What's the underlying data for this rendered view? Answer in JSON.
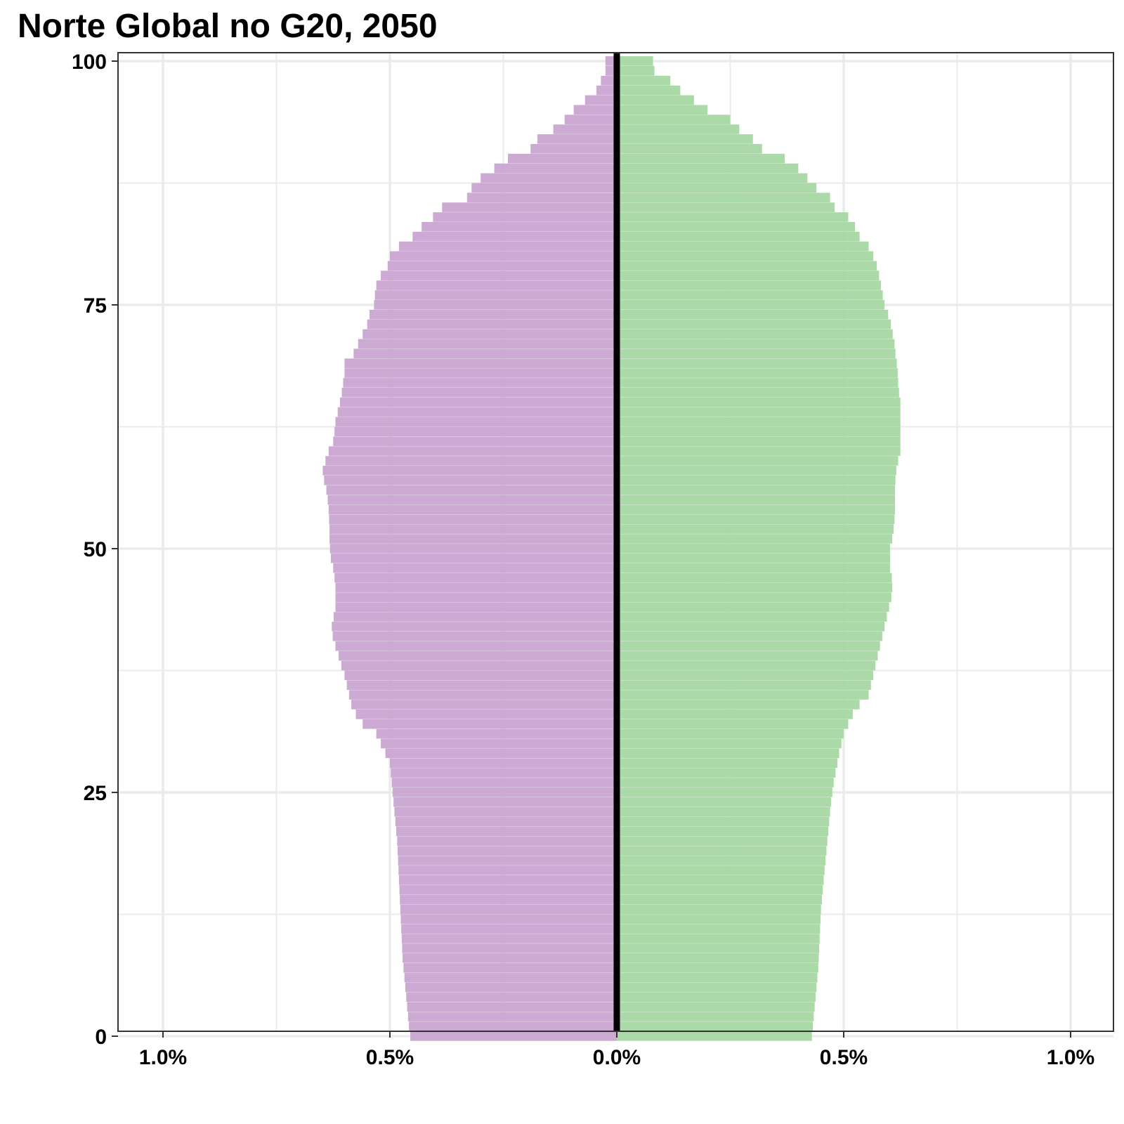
{
  "chart_data": {
    "type": "bar",
    "orientation": "horizontal-population-pyramid",
    "title": "Norte Global no G20, 2050",
    "xlabel": "",
    "ylabel": "",
    "x_unit": "percent of total population",
    "xlim": [
      -1.1,
      1.1
    ],
    "ylim": [
      0,
      100
    ],
    "x_ticks": [
      {
        "value": -1.0,
        "label": "1.0%"
      },
      {
        "value": -0.5,
        "label": "0.5%"
      },
      {
        "value": 0.0,
        "label": "0.0%"
      },
      {
        "value": 0.5,
        "label": "0.5%"
      },
      {
        "value": 1.0,
        "label": "1.0%"
      }
    ],
    "y_ticks": [
      {
        "value": 0,
        "label": "0"
      },
      {
        "value": 25,
        "label": "25"
      },
      {
        "value": 50,
        "label": "50"
      },
      {
        "value": 75,
        "label": "75"
      },
      {
        "value": 100,
        "label": "100"
      }
    ],
    "grid": true,
    "legend": "none",
    "ages": [
      0,
      1,
      2,
      3,
      4,
      5,
      6,
      7,
      8,
      9,
      10,
      11,
      12,
      13,
      14,
      15,
      16,
      17,
      18,
      19,
      20,
      21,
      22,
      23,
      24,
      25,
      26,
      27,
      28,
      29,
      30,
      31,
      32,
      33,
      34,
      35,
      36,
      37,
      38,
      39,
      40,
      41,
      42,
      43,
      44,
      45,
      46,
      47,
      48,
      49,
      50,
      51,
      52,
      53,
      54,
      55,
      56,
      57,
      58,
      59,
      60,
      61,
      62,
      63,
      64,
      65,
      66,
      67,
      68,
      69,
      70,
      71,
      72,
      73,
      74,
      75,
      76,
      77,
      78,
      79,
      80,
      81,
      82,
      83,
      84,
      85,
      86,
      87,
      88,
      89,
      90,
      91,
      92,
      93,
      94,
      95,
      96,
      97,
      98,
      99,
      100
    ],
    "series": [
      {
        "side": "left",
        "color": "#c9a5d1",
        "values": [
          0.455,
          0.458,
          0.46,
          0.462,
          0.464,
          0.466,
          0.468,
          0.47,
          0.472,
          0.473,
          0.474,
          0.475,
          0.476,
          0.477,
          0.478,
          0.479,
          0.48,
          0.481,
          0.482,
          0.483,
          0.484,
          0.486,
          0.488,
          0.49,
          0.492,
          0.494,
          0.496,
          0.498,
          0.5,
          0.51,
          0.52,
          0.53,
          0.56,
          0.575,
          0.585,
          0.59,
          0.595,
          0.6,
          0.607,
          0.613,
          0.62,
          0.626,
          0.628,
          0.624,
          0.62,
          0.62,
          0.62,
          0.622,
          0.625,
          0.63,
          0.632,
          0.633,
          0.633,
          0.634,
          0.635,
          0.637,
          0.64,
          0.645,
          0.648,
          0.642,
          0.635,
          0.625,
          0.622,
          0.62,
          0.615,
          0.61,
          0.606,
          0.603,
          0.6,
          0.6,
          0.58,
          0.57,
          0.56,
          0.55,
          0.545,
          0.535,
          0.533,
          0.53,
          0.52,
          0.505,
          0.5,
          0.48,
          0.45,
          0.43,
          0.405,
          0.385,
          0.33,
          0.32,
          0.3,
          0.27,
          0.24,
          0.19,
          0.175,
          0.14,
          0.115,
          0.095,
          0.07,
          0.045,
          0.035,
          0.025,
          0.025
        ]
      },
      {
        "side": "right",
        "color": "#a7d8a3",
        "values": [
          0.43,
          0.432,
          0.434,
          0.436,
          0.438,
          0.44,
          0.442,
          0.444,
          0.445,
          0.446,
          0.447,
          0.448,
          0.449,
          0.45,
          0.452,
          0.454,
          0.456,
          0.458,
          0.46,
          0.462,
          0.464,
          0.466,
          0.468,
          0.47,
          0.472,
          0.475,
          0.478,
          0.482,
          0.486,
          0.49,
          0.495,
          0.5,
          0.51,
          0.52,
          0.535,
          0.555,
          0.56,
          0.565,
          0.57,
          0.575,
          0.58,
          0.585,
          0.59,
          0.595,
          0.6,
          0.605,
          0.607,
          0.606,
          0.602,
          0.602,
          0.602,
          0.607,
          0.61,
          0.612,
          0.613,
          0.613,
          0.613,
          0.614,
          0.616,
          0.62,
          0.625,
          0.625,
          0.625,
          0.625,
          0.625,
          0.625,
          0.622,
          0.62,
          0.619,
          0.617,
          0.614,
          0.612,
          0.608,
          0.604,
          0.598,
          0.59,
          0.586,
          0.582,
          0.578,
          0.573,
          0.565,
          0.555,
          0.535,
          0.525,
          0.51,
          0.48,
          0.47,
          0.44,
          0.42,
          0.4,
          0.37,
          0.32,
          0.3,
          0.27,
          0.25,
          0.2,
          0.17,
          0.14,
          0.118,
          0.083,
          0.08
        ]
      }
    ]
  }
}
